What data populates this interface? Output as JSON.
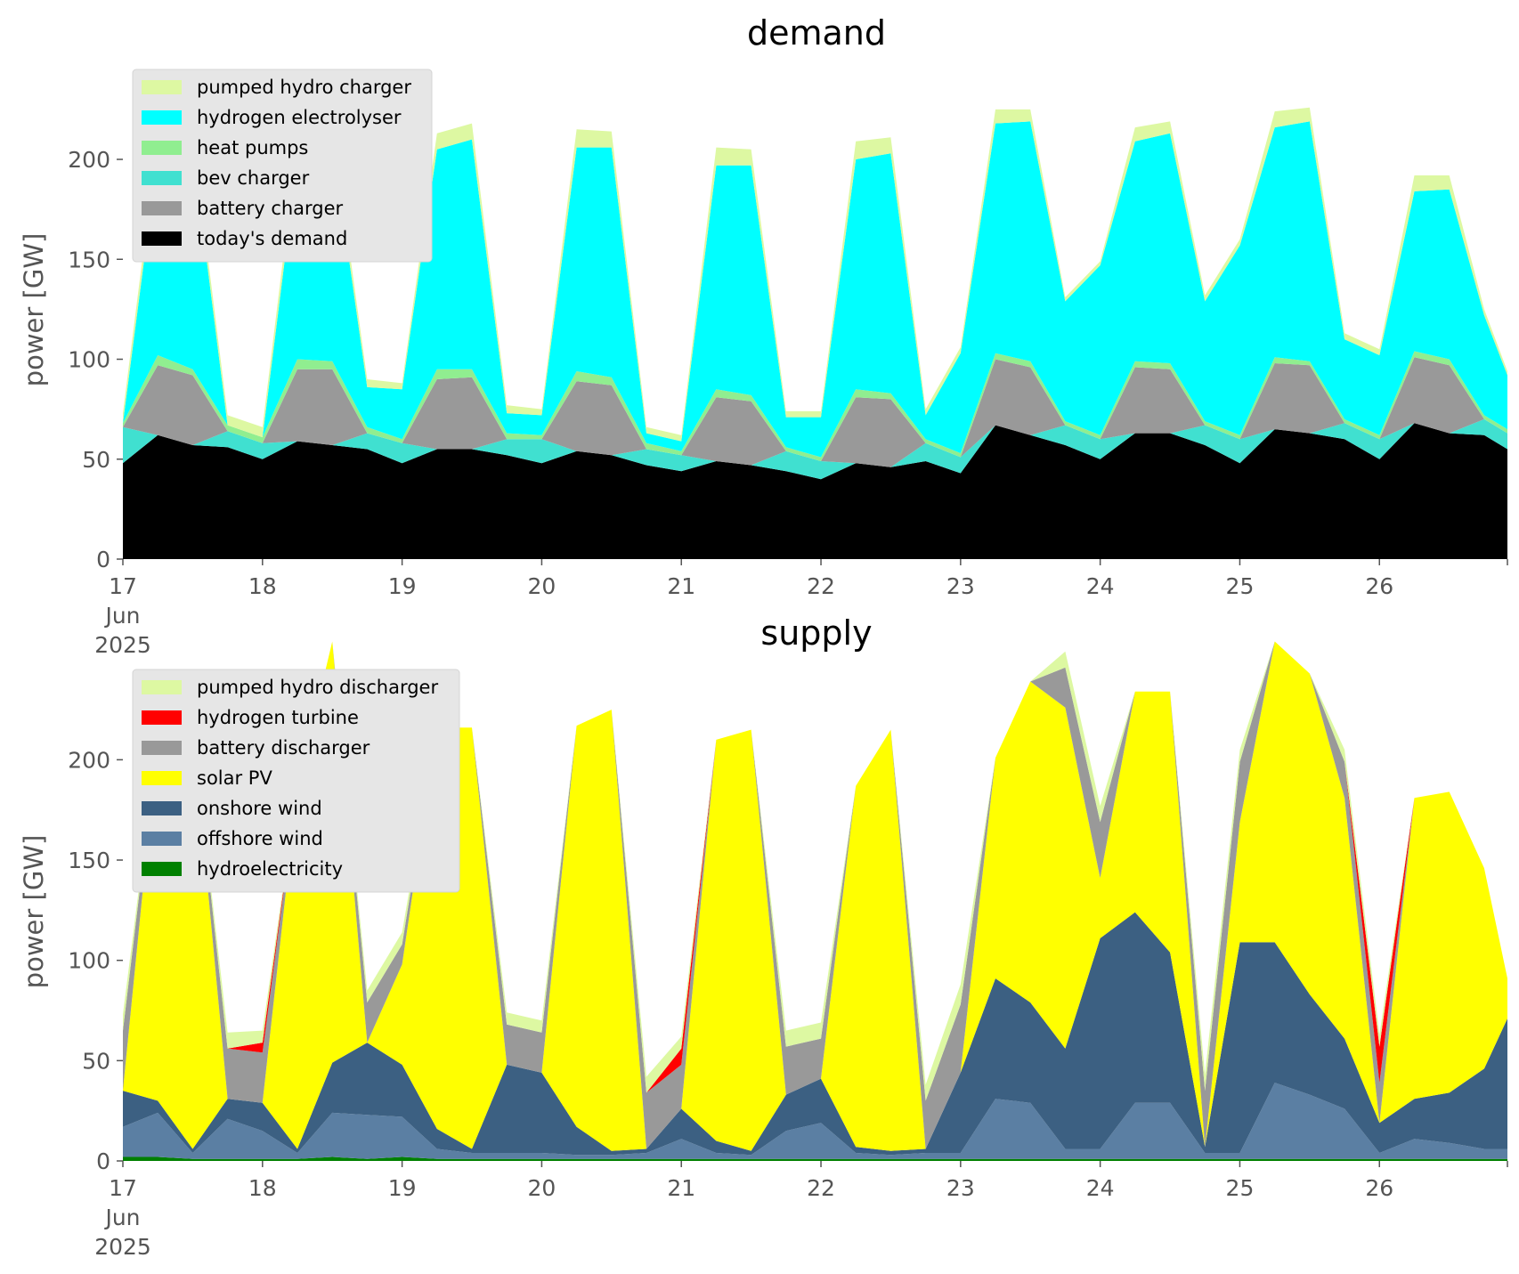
{
  "chart_data": [
    {
      "type": "area",
      "title": "demand",
      "xlabel": "",
      "ylabel": "power [GW]",
      "ylim": [
        0,
        245
      ],
      "yticks": [
        0,
        50,
        100,
        150,
        200
      ],
      "xlim": [
        0,
        238
      ],
      "x_unit": "hours since 2025-06-17 00:00",
      "xticks": [
        0,
        24,
        48,
        72,
        96,
        120,
        144,
        168,
        192,
        216
      ],
      "xtick_labels": [
        "17",
        "18",
        "19",
        "20",
        "21",
        "22",
        "23",
        "24",
        "25",
        "26"
      ],
      "xtick_sub_labels": [
        "Jun",
        "2025"
      ],
      "grid": false,
      "legend_position": "upper-left",
      "stack_order": "bottom-to-top",
      "x": [
        0,
        6,
        12,
        18,
        24,
        30,
        36,
        42,
        48,
        54,
        60,
        66,
        72,
        78,
        84,
        90,
        96,
        102,
        108,
        114,
        120,
        126,
        132,
        138,
        144,
        150,
        156,
        162,
        168,
        174,
        180,
        186,
        192,
        198,
        204,
        210,
        216,
        222,
        228,
        234,
        238
      ],
      "series": [
        {
          "name": "today's demand",
          "color": "#000000",
          "values": [
            48,
            62,
            57,
            56,
            50,
            59,
            57,
            55,
            48,
            55,
            55,
            52,
            48,
            54,
            52,
            47,
            44,
            49,
            47,
            44,
            40,
            48,
            46,
            49,
            43,
            67,
            62,
            57,
            50,
            63,
            63,
            57,
            48,
            65,
            63,
            60,
            50,
            68,
            63,
            62,
            55
          ]
        },
        {
          "name": "bev charger",
          "color": "#40e0d0",
          "values": [
            18,
            0,
            0,
            8,
            8,
            0,
            0,
            8,
            10,
            0,
            0,
            8,
            12,
            0,
            0,
            8,
            8,
            0,
            0,
            10,
            9,
            0,
            0,
            9,
            8,
            0,
            0,
            10,
            10,
            0,
            0,
            10,
            12,
            0,
            0,
            8,
            10,
            0,
            0,
            8,
            8
          ]
        },
        {
          "name": "battery charger",
          "color": "#999999",
          "values": [
            0,
            35,
            35,
            0,
            0,
            36,
            38,
            0,
            0,
            35,
            36,
            0,
            0,
            35,
            35,
            0,
            0,
            32,
            32,
            0,
            0,
            33,
            34,
            0,
            0,
            33,
            34,
            0,
            0,
            33,
            32,
            0,
            0,
            33,
            34,
            0,
            0,
            33,
            34,
            0,
            0
          ]
        },
        {
          "name": "heat pumps",
          "color": "#90ee90",
          "values": [
            2,
            5,
            3,
            3,
            3,
            5,
            4,
            3,
            2,
            5,
            4,
            3,
            2,
            5,
            4,
            3,
            2,
            4,
            3,
            2,
            2,
            4,
            3,
            2,
            2,
            3,
            3,
            2,
            2,
            3,
            3,
            2,
            2,
            3,
            2,
            2,
            2,
            3,
            3,
            2,
            2
          ]
        },
        {
          "name": "hydrogen electrolyser",
          "color": "#00ffff",
          "values": [
            0,
            100,
            110,
            0,
            0,
            100,
            110,
            20,
            25,
            110,
            115,
            10,
            10,
            112,
            115,
            5,
            5,
            112,
            115,
            15,
            20,
            115,
            120,
            12,
            50,
            115,
            120,
            60,
            85,
            110,
            115,
            60,
            95,
            115,
            120,
            40,
            40,
            80,
            85,
            50,
            27
          ]
        },
        {
          "name": "pumped hydro charger",
          "color": "#ddf8a2",
          "values": [
            5,
            9,
            7,
            5,
            5,
            9,
            8,
            4,
            3,
            8,
            8,
            4,
            3,
            9,
            8,
            3,
            3,
            9,
            8,
            3,
            3,
            9,
            8,
            3,
            3,
            7,
            6,
            2,
            2,
            7,
            6,
            3,
            3,
            8,
            7,
            3,
            3,
            8,
            7,
            3,
            2
          ]
        }
      ],
      "legend_entries": [
        "pumped hydro charger",
        "hydrogen electrolyser",
        "heat pumps",
        "bev charger",
        "battery charger",
        "today's demand"
      ]
    },
    {
      "type": "area",
      "title": "supply",
      "xlabel": "",
      "ylabel": "power [GW]",
      "ylim": [
        0,
        245
      ],
      "yticks": [
        0,
        50,
        100,
        150,
        200
      ],
      "xlim": [
        0,
        238
      ],
      "x_unit": "hours since 2025-06-17 00:00",
      "xticks": [
        0,
        24,
        48,
        72,
        96,
        120,
        144,
        168,
        192,
        216
      ],
      "xtick_labels": [
        "17",
        "18",
        "19",
        "20",
        "21",
        "22",
        "23",
        "24",
        "25",
        "26"
      ],
      "xtick_sub_labels": [
        "Jun",
        "2025"
      ],
      "grid": false,
      "legend_position": "upper-left",
      "stack_order": "bottom-to-top",
      "x": [
        0,
        6,
        12,
        18,
        24,
        30,
        36,
        42,
        48,
        54,
        60,
        66,
        72,
        78,
        84,
        90,
        96,
        102,
        108,
        114,
        120,
        126,
        132,
        138,
        144,
        150,
        156,
        162,
        168,
        174,
        180,
        186,
        192,
        198,
        204,
        210,
        216,
        222,
        228,
        234,
        238
      ],
      "series": [
        {
          "name": "hydroelectricity",
          "color": "#008000",
          "values": [
            2,
            2,
            1,
            1,
            1,
            1,
            2,
            1,
            2,
            1,
            1,
            1,
            1,
            1,
            1,
            1,
            1,
            1,
            1,
            1,
            1,
            1,
            1,
            1,
            1,
            1,
            1,
            1,
            1,
            1,
            1,
            1,
            1,
            1,
            1,
            1,
            1,
            1,
            1,
            1,
            1
          ]
        },
        {
          "name": "offshore wind",
          "color": "#5b7fa3",
          "values": [
            15,
            22,
            3,
            20,
            14,
            3,
            22,
            22,
            20,
            5,
            3,
            3,
            3,
            2,
            2,
            3,
            10,
            3,
            2,
            14,
            18,
            3,
            2,
            3,
            3,
            30,
            28,
            5,
            5,
            28,
            28,
            3,
            3,
            38,
            32,
            25,
            3,
            10,
            8,
            5,
            5
          ]
        },
        {
          "name": "onshore wind",
          "color": "#3c6082",
          "values": [
            18,
            6,
            2,
            10,
            14,
            2,
            25,
            36,
            26,
            10,
            2,
            44,
            40,
            14,
            2,
            2,
            15,
            6,
            2,
            18,
            22,
            3,
            2,
            2,
            40,
            60,
            50,
            50,
            105,
            95,
            75,
            3,
            105,
            70,
            50,
            35,
            15,
            20,
            25,
            40,
            65
          ]
        },
        {
          "name": "solar PV",
          "color": "#ffff00",
          "values": [
            0,
            180,
            210,
            0,
            0,
            180,
            210,
            0,
            50,
            200,
            210,
            0,
            0,
            200,
            220,
            0,
            0,
            200,
            210,
            0,
            0,
            180,
            210,
            0,
            0,
            110,
            160,
            170,
            30,
            110,
            130,
            0,
            60,
            150,
            160,
            120,
            0,
            150,
            150,
            100,
            20
          ]
        },
        {
          "name": "battery discharger",
          "color": "#999999",
          "values": [
            30,
            0,
            0,
            25,
            25,
            0,
            0,
            20,
            10,
            0,
            0,
            20,
            20,
            0,
            0,
            28,
            22,
            0,
            0,
            24,
            20,
            0,
            0,
            24,
            34,
            0,
            0,
            20,
            28,
            0,
            0,
            28,
            30,
            0,
            0,
            18,
            20,
            0,
            0,
            0,
            0
          ]
        },
        {
          "name": "hydrogen turbine",
          "color": "#ff0000",
          "values": [
            0,
            0,
            0,
            0,
            5,
            0,
            0,
            0,
            0,
            0,
            0,
            0,
            0,
            0,
            0,
            0,
            8,
            0,
            0,
            0,
            0,
            0,
            0,
            0,
            0,
            0,
            0,
            0,
            0,
            0,
            0,
            0,
            0,
            0,
            0,
            0,
            18,
            0,
            0,
            0,
            0
          ]
        },
        {
          "name": "pumped hydro discharger",
          "color": "#ddf8a2",
          "values": [
            8,
            0,
            0,
            8,
            6,
            0,
            0,
            6,
            6,
            0,
            0,
            6,
            6,
            0,
            0,
            8,
            6,
            0,
            0,
            8,
            8,
            0,
            0,
            8,
            10,
            0,
            0,
            8,
            8,
            0,
            0,
            8,
            6,
            0,
            0,
            6,
            6,
            0,
            0,
            0,
            0
          ]
        }
      ],
      "legend_entries": [
        "pumped hydro discharger",
        "hydrogen turbine",
        "battery discharger",
        "solar PV",
        "onshore wind",
        "offshore wind",
        "hydroelectricity"
      ]
    }
  ]
}
